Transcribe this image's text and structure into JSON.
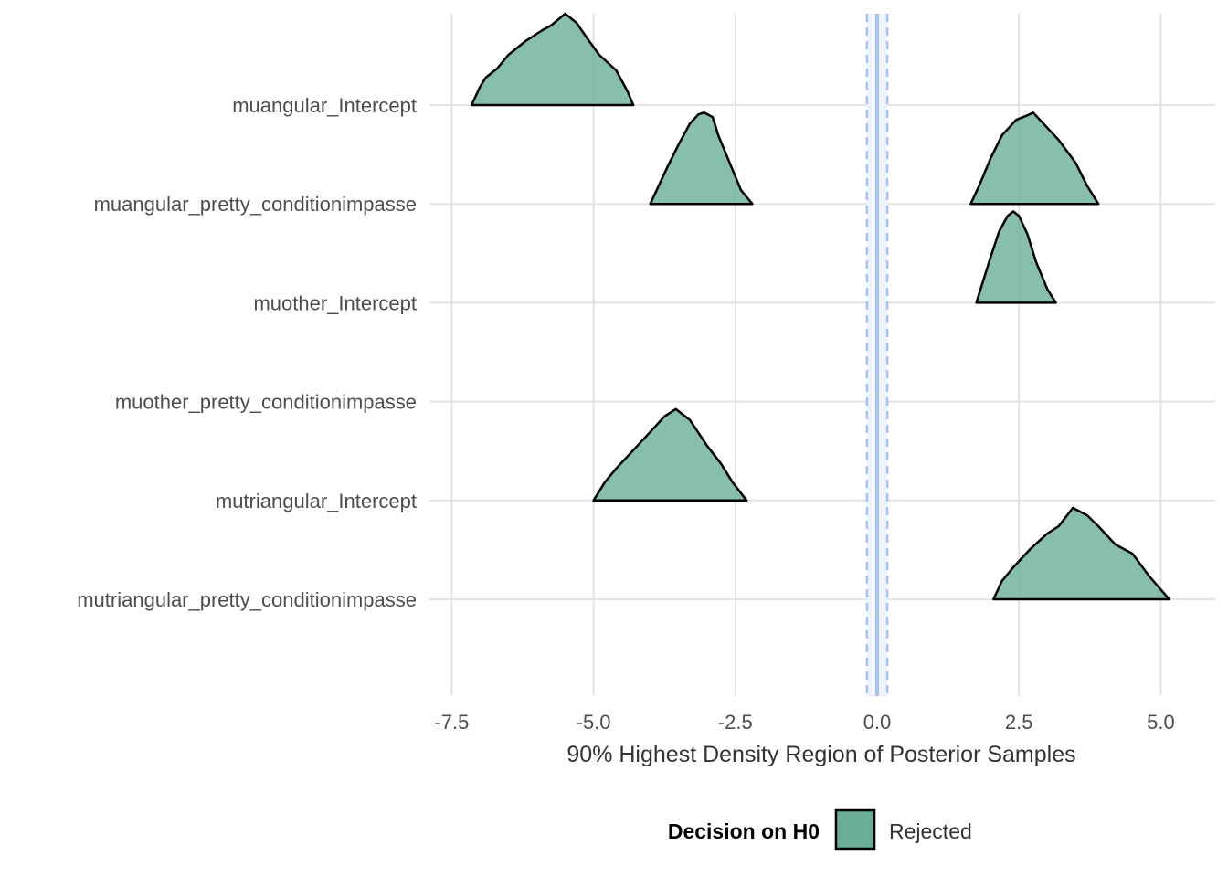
{
  "chart_data": {
    "type": "ridgeline",
    "xlabel": "90% Highest Density Region of Posterior Samples",
    "xlim": [
      -7.5,
      5.0
    ],
    "xticks": [
      -7.5,
      -5.0,
      -2.5,
      0.0,
      2.5,
      5.0
    ],
    "xtick_labels": [
      "-7.5",
      "-5.0",
      "-2.5",
      "0.0",
      "2.5",
      "5.0"
    ],
    "categories": [
      "muangular_Intercept",
      "muangular_pretty_conditionimpasse",
      "muother_Intercept",
      "muother_pretty_conditionimpasse",
      "mutriangular_Intercept",
      "mutriangular_pretty_conditionimpasse"
    ],
    "reference_line": {
      "x": 0.0,
      "rope": [
        -0.18,
        0.18
      ],
      "color": "#a9c4ea"
    },
    "fill_color": "#6aae98",
    "grid": true,
    "legend": {
      "title": "Decision on H0",
      "entries": [
        "Rejected"
      ],
      "position": "bottom"
    },
    "series": [
      {
        "category": "muangular_Intercept",
        "x": [
          -7.15,
          -7.0,
          -6.9,
          -6.7,
          -6.5,
          -6.2,
          -5.9,
          -5.75,
          -5.5,
          -5.3,
          -5.1,
          -4.9,
          -4.6,
          -4.4,
          -4.3
        ],
        "density": [
          0.0,
          0.2,
          0.3,
          0.4,
          0.55,
          0.7,
          0.82,
          0.87,
          1.0,
          0.9,
          0.72,
          0.55,
          0.38,
          0.15,
          0.0
        ]
      },
      {
        "category": "muangular_pretty_conditionimpasse",
        "x": [
          -4.0,
          -3.85,
          -3.7,
          -3.5,
          -3.3,
          -3.15,
          -3.05,
          -2.9,
          -2.8,
          -2.6,
          -2.4,
          -2.2
        ],
        "density": [
          0.0,
          0.2,
          0.4,
          0.65,
          0.88,
          0.98,
          1.0,
          0.95,
          0.75,
          0.45,
          0.15,
          0.0
        ]
      },
      {
        "category": "muangular_pretty_conditionimpasse",
        "x": [
          1.65,
          1.8,
          2.0,
          2.2,
          2.45,
          2.65,
          2.75,
          2.9,
          3.2,
          3.5,
          3.7,
          3.9
        ],
        "density": [
          0.0,
          0.2,
          0.5,
          0.75,
          0.92,
          0.97,
          1.0,
          0.9,
          0.7,
          0.45,
          0.2,
          0.0
        ]
      },
      {
        "category": "muother_Intercept",
        "x": [
          1.75,
          1.85,
          2.0,
          2.15,
          2.3,
          2.4,
          2.5,
          2.65,
          2.8,
          3.0,
          3.15
        ],
        "density": [
          0.0,
          0.2,
          0.5,
          0.78,
          0.95,
          1.0,
          0.95,
          0.75,
          0.45,
          0.15,
          0.0
        ]
      },
      {
        "category": "mutriangular_Intercept",
        "x": [
          -5.0,
          -4.8,
          -4.6,
          -4.3,
          -4.0,
          -3.75,
          -3.55,
          -3.3,
          -3.0,
          -2.75,
          -2.55,
          -2.3
        ],
        "density": [
          0.0,
          0.2,
          0.35,
          0.55,
          0.75,
          0.92,
          1.0,
          0.88,
          0.6,
          0.4,
          0.2,
          0.0
        ]
      },
      {
        "category": "mutriangular_pretty_conditionimpasse",
        "x": [
          2.05,
          2.2,
          2.4,
          2.7,
          3.0,
          3.2,
          3.45,
          3.7,
          3.9,
          4.2,
          4.5,
          4.8,
          5.15
        ],
        "density": [
          0.0,
          0.2,
          0.35,
          0.55,
          0.72,
          0.8,
          1.0,
          0.92,
          0.8,
          0.6,
          0.5,
          0.25,
          0.0
        ]
      }
    ]
  }
}
